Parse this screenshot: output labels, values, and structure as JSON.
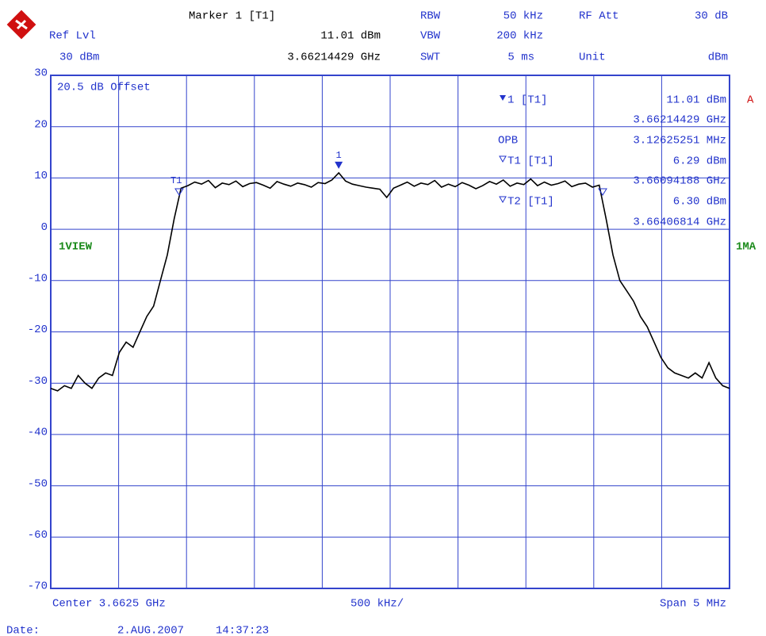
{
  "header": {
    "marker_title": "Marker 1 [T1]",
    "marker_level": "11.01 dBm",
    "marker_freq": "3.66214429 GHz",
    "ref_label": "Ref Lvl",
    "ref_value": "30 dBm",
    "rbw_label": "RBW",
    "rbw_value": "50 kHz",
    "vbw_label": "VBW",
    "vbw_value": "200 kHz",
    "swt_label": "SWT",
    "swt_value": "5 ms",
    "att_label": "RF Att",
    "att_value": "30 dB",
    "unit_label": "Unit",
    "unit_value": "dBm"
  },
  "info": {
    "offset": "20.5 dB Offset",
    "m1": "1 [T1]",
    "m1_level": "11.01 dBm",
    "m1_freq": "3.66214429 GHz",
    "opb": "OPB",
    "opb_value": "3.12625251 MHz",
    "t1": "T1 [T1]",
    "t1_level": "6.29 dBm",
    "t1_freq": "3.66094188 GHz",
    "t2": "T2 [T1]",
    "t2_level": "6.30 dBm",
    "t2_freq": "3.66406814 GHz",
    "trace_a": "A",
    "view": "1VIEW",
    "mode": "1MA",
    "marker_1_tag": "1",
    "t1_tag": "T1"
  },
  "footer": {
    "center": "Center 3.6625 GHz",
    "div": "500 kHz/",
    "span": "Span 5 MHz",
    "date_label": "Date:",
    "date": "2.AUG.2007",
    "time": "14:37:23"
  },
  "chart_data": {
    "type": "line",
    "color": "#000000",
    "grid": true,
    "ylim": [
      -70,
      30
    ],
    "yticks": [
      -70,
      -60,
      -50,
      -40,
      -30,
      -20,
      -10,
      0,
      10,
      20,
      30
    ],
    "values": [
      -31,
      -31.5,
      -30.5,
      -31,
      -28.5,
      -30,
      -31,
      -29,
      -28,
      -28.5,
      -24,
      -22,
      -23,
      -20,
      -17,
      -15,
      -10,
      -5,
      2,
      8,
      8.5,
      9.2,
      8.8,
      9.5,
      8.1,
      9,
      8.7,
      9.4,
      8.3,
      8.9,
      9.1,
      8.6,
      8,
      9.3,
      8.8,
      8.4,
      9,
      8.7,
      8.2,
      9.1,
      8.9,
      9.6,
      11.01,
      9.4,
      8.8,
      8.5,
      8.2,
      8,
      7.8,
      6.2,
      8,
      8.6,
      9.2,
      8.4,
      9,
      8.7,
      9.5,
      8.2,
      8.8,
      8.3,
      9.1,
      8.6,
      7.9,
      8.5,
      9.3,
      8.8,
      9.6,
      8.4,
      9,
      8.7,
      9.8,
      8.5,
      9.2,
      8.6,
      8.9,
      9.4,
      8.3,
      8.8,
      9,
      8.2,
      8.6,
      2,
      -5,
      -10,
      -12,
      -14,
      -17,
      -19,
      -22,
      -25,
      -27,
      -28,
      -28.5,
      -29,
      -28,
      -29,
      -26,
      -29,
      -30.5,
      -31
    ]
  }
}
